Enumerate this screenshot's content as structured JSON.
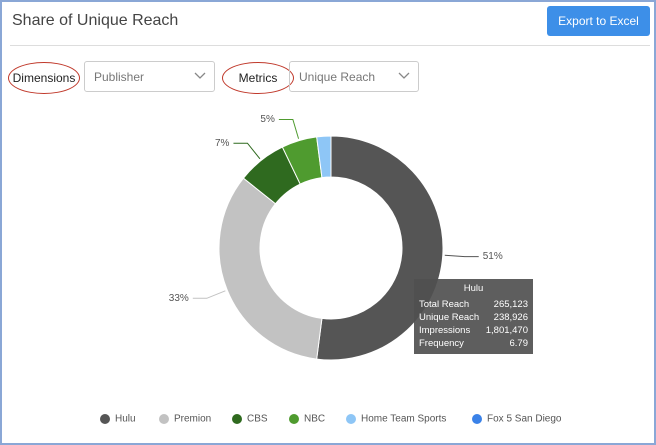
{
  "header": {
    "title": "Share of Unique Reach",
    "button": "Export to Excel"
  },
  "controls": [
    {
      "label": "Dimensions",
      "value": "Publisher"
    },
    {
      "label": "Metrics",
      "value": "Unique Reach"
    }
  ],
  "chart_data": {
    "type": "donut",
    "categories": [
      "Hulu",
      "Premion",
      "CBS",
      "NBC",
      "Home Team Sports",
      "Fox 5 San Diego"
    ],
    "values": [
      51,
      33,
      7,
      5,
      2,
      0
    ],
    "value_labels": [
      "51%",
      "33%",
      "7%",
      "5%",
      null,
      null
    ],
    "colors": [
      "#555555",
      "#c2c2c2",
      "#2f6a1f",
      "#4f9b2f",
      "#8ec6f6",
      "#3a82e8"
    ],
    "legend": "bottom"
  },
  "tooltip": {
    "title": "Hulu",
    "rows": [
      [
        "Total Reach",
        "265,123"
      ],
      [
        "Unique Reach",
        "238,926"
      ],
      [
        "Impressions",
        "1,801,470"
      ],
      [
        "Frequency",
        "6.79"
      ]
    ]
  }
}
